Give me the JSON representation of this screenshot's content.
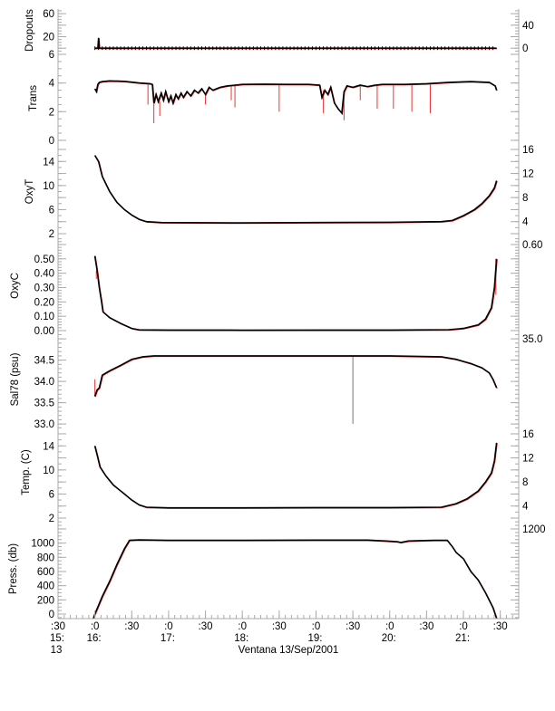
{
  "chart_data": {
    "type": "line",
    "title": "",
    "xlabel": "Ventana 13/Sep/2001",
    "xlim": [
      15.5,
      21.75
    ],
    "x_unit": "hour of day",
    "x_ticks": [
      {
        "value": 15.5,
        "minute": ":30",
        "hour": "15:",
        "day": "13"
      },
      {
        "value": 16.0,
        "minute": ":0",
        "hour": "16:"
      },
      {
        "value": 16.5,
        "minute": ":30"
      },
      {
        "value": 17.0,
        "minute": ":0",
        "hour": "17:"
      },
      {
        "value": 17.5,
        "minute": ":30"
      },
      {
        "value": 18.0,
        "minute": ":0",
        "hour": "18:"
      },
      {
        "value": 18.5,
        "minute": ":30"
      },
      {
        "value": 19.0,
        "minute": ":0",
        "hour": "19:"
      },
      {
        "value": 19.5,
        "minute": ":30"
      },
      {
        "value": 20.0,
        "minute": ":0",
        "hour": "20:"
      },
      {
        "value": 20.5,
        "minute": ":30"
      },
      {
        "value": 21.0,
        "minute": ":0",
        "hour": "21:"
      },
      {
        "value": 21.5,
        "minute": ":30"
      }
    ],
    "panels": [
      {
        "name": "dropouts",
        "ylabel": "Dropouts",
        "ylim": [
          -6,
          68
        ],
        "minor": 5,
        "yticks": [
          {
            "v": 0,
            "l": "0"
          },
          {
            "v": 20,
            "l": "20"
          },
          {
            "v": 40,
            "l": "40"
          },
          {
            "v": 60,
            "l": "60"
          }
        ],
        "series": [
          [
            16.0,
            0
          ],
          [
            16.04,
            0
          ],
          [
            16.05,
            18
          ],
          [
            16.06,
            0
          ],
          [
            21.45,
            0
          ]
        ],
        "markers": true,
        "spikes": [
          [
            16.05,
            18
          ]
        ]
      },
      {
        "name": "trans",
        "ylabel": "Trans",
        "ylim": [
          -0.32,
          6.19
        ],
        "minor": 0.5,
        "yticks": [
          {
            "v": 0,
            "l": "0"
          },
          {
            "v": 2,
            "l": "2"
          },
          {
            "v": 4,
            "l": "4"
          },
          {
            "v": 6,
            "l": "6"
          }
        ],
        "series": [
          [
            16.0,
            3.6
          ],
          [
            16.02,
            3.4
          ],
          [
            16.04,
            3.9
          ],
          [
            16.06,
            4.05
          ],
          [
            16.1,
            4.1
          ],
          [
            16.2,
            4.15
          ],
          [
            16.4,
            4.12
          ],
          [
            16.6,
            4.0
          ],
          [
            16.75,
            3.95
          ],
          [
            16.78,
            3.9
          ],
          [
            16.8,
            2.6
          ],
          [
            16.83,
            3.2
          ],
          [
            16.86,
            2.7
          ],
          [
            16.9,
            3.3
          ],
          [
            16.93,
            2.8
          ],
          [
            16.96,
            3.4
          ],
          [
            17.0,
            2.7
          ],
          [
            17.03,
            3.1
          ],
          [
            17.06,
            2.6
          ],
          [
            17.1,
            3.2
          ],
          [
            17.13,
            2.9
          ],
          [
            17.17,
            3.3
          ],
          [
            17.2,
            3.0
          ],
          [
            17.25,
            3.4
          ],
          [
            17.3,
            3.1
          ],
          [
            17.35,
            3.5
          ],
          [
            17.4,
            3.3
          ],
          [
            17.45,
            3.6
          ],
          [
            17.5,
            3.2
          ],
          [
            17.55,
            3.7
          ],
          [
            17.6,
            3.5
          ],
          [
            17.7,
            3.7
          ],
          [
            17.8,
            3.8
          ],
          [
            17.9,
            3.85
          ],
          [
            18.0,
            3.9
          ],
          [
            18.3,
            3.92
          ],
          [
            18.6,
            3.9
          ],
          [
            18.9,
            3.9
          ],
          [
            19.05,
            3.85
          ],
          [
            19.08,
            3.0
          ],
          [
            19.12,
            3.5
          ],
          [
            19.16,
            3.2
          ],
          [
            19.2,
            3.7
          ],
          [
            19.25,
            2.6
          ],
          [
            19.3,
            2.2
          ],
          [
            19.35,
            1.9
          ],
          [
            19.38,
            3.4
          ],
          [
            19.42,
            3.8
          ],
          [
            19.5,
            3.7
          ],
          [
            19.6,
            3.85
          ],
          [
            19.7,
            3.75
          ],
          [
            19.8,
            3.85
          ],
          [
            19.9,
            3.9
          ],
          [
            20.2,
            3.9
          ],
          [
            20.5,
            3.95
          ],
          [
            20.8,
            4.05
          ],
          [
            21.1,
            4.1
          ],
          [
            21.35,
            4.05
          ],
          [
            21.43,
            3.8
          ],
          [
            21.45,
            3.5
          ]
        ],
        "spikes": [
          [
            16.72,
            2.5
          ],
          [
            16.8,
            1.2
          ],
          [
            16.88,
            1.7
          ],
          [
            17.5,
            2.5
          ],
          [
            17.85,
            2.8
          ],
          [
            17.9,
            2.3
          ],
          [
            18.5,
            2.0
          ],
          [
            19.1,
            1.9
          ],
          [
            19.38,
            1.4
          ],
          [
            19.6,
            2.8
          ],
          [
            19.83,
            2.2
          ],
          [
            20.05,
            2.2
          ],
          [
            20.3,
            2.0
          ],
          [
            20.55,
            1.9
          ]
        ]
      },
      {
        "name": "oxyt",
        "ylabel": "OxyT",
        "ylim": [
          1.25,
          16.75
        ],
        "minor": 1,
        "yticks": [
          {
            "v": 2,
            "l": "2"
          },
          {
            "v": 4,
            "l": "4"
          },
          {
            "v": 6,
            "l": "6"
          },
          {
            "v": 8,
            "l": "8"
          },
          {
            "v": 10,
            "l": "10"
          },
          {
            "v": 12,
            "l": "12"
          },
          {
            "v": 14,
            "l": "14"
          },
          {
            "v": 16,
            "l": "16"
          }
        ],
        "series": [
          [
            16.0,
            15
          ],
          [
            16.05,
            14
          ],
          [
            16.1,
            11.5
          ],
          [
            16.2,
            9
          ],
          [
            16.3,
            7.2
          ],
          [
            16.4,
            6
          ],
          [
            16.5,
            5.1
          ],
          [
            16.6,
            4.4
          ],
          [
            16.7,
            4.0
          ],
          [
            16.9,
            3.85
          ],
          [
            18.0,
            3.8
          ],
          [
            19.0,
            3.85
          ],
          [
            20.0,
            3.9
          ],
          [
            20.7,
            4.0
          ],
          [
            20.85,
            4.2
          ],
          [
            21.0,
            5.0
          ],
          [
            21.15,
            6.0
          ],
          [
            21.25,
            7.0
          ],
          [
            21.35,
            8.3
          ],
          [
            21.42,
            9.6
          ],
          [
            21.45,
            10.8
          ]
        ],
        "spikes": []
      },
      {
        "name": "oxyc",
        "ylabel": "OxyC",
        "ylim": [
          -0.019,
          0.644
        ],
        "minor": 0.02,
        "yticks": [
          {
            "v": 0,
            "l": "0.00"
          },
          {
            "v": 0.1,
            "l": "0.10"
          },
          {
            "v": 0.2,
            "l": "0.20"
          },
          {
            "v": 0.3,
            "l": "0.30"
          },
          {
            "v": 0.4,
            "l": "0.40"
          },
          {
            "v": 0.5,
            "l": "0.50"
          },
          {
            "v": 0.6,
            "l": "0.60"
          }
        ],
        "series": [
          [
            16.0,
            0.52
          ],
          [
            16.03,
            0.42
          ],
          [
            16.06,
            0.3
          ],
          [
            16.09,
            0.2
          ],
          [
            16.11,
            0.13
          ],
          [
            16.2,
            0.09
          ],
          [
            16.35,
            0.05
          ],
          [
            16.5,
            0.015
          ],
          [
            16.6,
            0.005
          ],
          [
            17.0,
            0.004
          ],
          [
            18.0,
            0.003
          ],
          [
            19.0,
            0.004
          ],
          [
            20.0,
            0.004
          ],
          [
            20.8,
            0.006
          ],
          [
            21.0,
            0.015
          ],
          [
            21.2,
            0.04
          ],
          [
            21.3,
            0.08
          ],
          [
            21.38,
            0.16
          ],
          [
            21.42,
            0.3
          ],
          [
            21.45,
            0.5
          ]
        ],
        "spikes": [
          [
            16.02,
            0.36
          ],
          [
            21.44,
            0.25
          ]
        ]
      },
      {
        "name": "sal78",
        "ylabel": "Sal78 (psu)",
        "ylim": [
          32.96,
          35.13
        ],
        "minor": 0.1,
        "yticks": [
          {
            "v": 33.0,
            "l": "33.0"
          },
          {
            "v": 33.5,
            "l": "33.5"
          },
          {
            "v": 34.0,
            "l": "34.0"
          },
          {
            "v": 34.5,
            "l": "34.5"
          },
          {
            "v": 35.0,
            "l": "35.0"
          }
        ],
        "series": [
          [
            16.0,
            33.65
          ],
          [
            16.03,
            33.8
          ],
          [
            16.06,
            33.85
          ],
          [
            16.1,
            34.15
          ],
          [
            16.2,
            34.25
          ],
          [
            16.35,
            34.38
          ],
          [
            16.5,
            34.52
          ],
          [
            16.65,
            34.58
          ],
          [
            16.8,
            34.6
          ],
          [
            18.0,
            34.6
          ],
          [
            19.0,
            34.6
          ],
          [
            20.0,
            34.6
          ],
          [
            20.7,
            34.58
          ],
          [
            20.9,
            34.52
          ],
          [
            21.1,
            34.42
          ],
          [
            21.25,
            34.32
          ],
          [
            21.35,
            34.2
          ],
          [
            21.4,
            34.05
          ],
          [
            21.45,
            33.85
          ]
        ],
        "spikes": [
          [
            16.0,
            34.05
          ],
          [
            19.5,
            33.0
          ]
        ]
      },
      {
        "name": "temp",
        "ylabel": "Temp. (C)",
        "ylim": [
          1.85,
          17.35
        ],
        "minor": 1,
        "yticks": [
          {
            "v": 2,
            "l": "2"
          },
          {
            "v": 4,
            "l": "4"
          },
          {
            "v": 6,
            "l": "6"
          },
          {
            "v": 8,
            "l": "8"
          },
          {
            "v": 10,
            "l": "10"
          },
          {
            "v": 12,
            "l": "12"
          },
          {
            "v": 14,
            "l": "14"
          },
          {
            "v": 16,
            "l": "16"
          }
        ],
        "series": [
          [
            16.0,
            14
          ],
          [
            16.03,
            12.5
          ],
          [
            16.07,
            10.5
          ],
          [
            16.15,
            9
          ],
          [
            16.25,
            7.5
          ],
          [
            16.4,
            6
          ],
          [
            16.5,
            5
          ],
          [
            16.6,
            4.2
          ],
          [
            16.7,
            3.8
          ],
          [
            17.0,
            3.7
          ],
          [
            18.0,
            3.7
          ],
          [
            19.0,
            3.75
          ],
          [
            20.0,
            3.75
          ],
          [
            20.7,
            3.8
          ],
          [
            20.9,
            4.4
          ],
          [
            21.05,
            5.2
          ],
          [
            21.2,
            6.5
          ],
          [
            21.3,
            8.0
          ],
          [
            21.38,
            9.5
          ],
          [
            21.42,
            11.5
          ],
          [
            21.45,
            14.5
          ]
        ],
        "spikes": []
      },
      {
        "name": "press",
        "ylabel": "Press. (db)",
        "ylim": [
          -64,
          1340
        ],
        "minor": 50,
        "yticks": [
          {
            "v": 0,
            "l": "0"
          },
          {
            "v": 200,
            "l": "200"
          },
          {
            "v": 400,
            "l": "400"
          },
          {
            "v": 600,
            "l": "600"
          },
          {
            "v": 800,
            "l": "800"
          },
          {
            "v": 1000,
            "l": "1000"
          },
          {
            "v": 1200,
            "l": "1200"
          }
        ],
        "series": [
          [
            15.98,
            -60
          ],
          [
            16.0,
            0
          ],
          [
            16.1,
            250
          ],
          [
            16.2,
            460
          ],
          [
            16.3,
            700
          ],
          [
            16.4,
            920
          ],
          [
            16.47,
            1040
          ],
          [
            16.6,
            1045
          ],
          [
            17.0,
            1040
          ],
          [
            18.0,
            1040
          ],
          [
            19.0,
            1042
          ],
          [
            19.7,
            1043
          ],
          [
            19.95,
            1030
          ],
          [
            20.1,
            1020
          ],
          [
            20.15,
            1010
          ],
          [
            20.25,
            1030
          ],
          [
            20.4,
            1035
          ],
          [
            20.6,
            1040
          ],
          [
            20.78,
            1040
          ],
          [
            20.85,
            950
          ],
          [
            20.9,
            870
          ],
          [
            21.0,
            780
          ],
          [
            21.1,
            600
          ],
          [
            21.2,
            480
          ],
          [
            21.3,
            300
          ],
          [
            21.4,
            90
          ],
          [
            21.45,
            -60
          ]
        ],
        "spikes": []
      }
    ]
  }
}
